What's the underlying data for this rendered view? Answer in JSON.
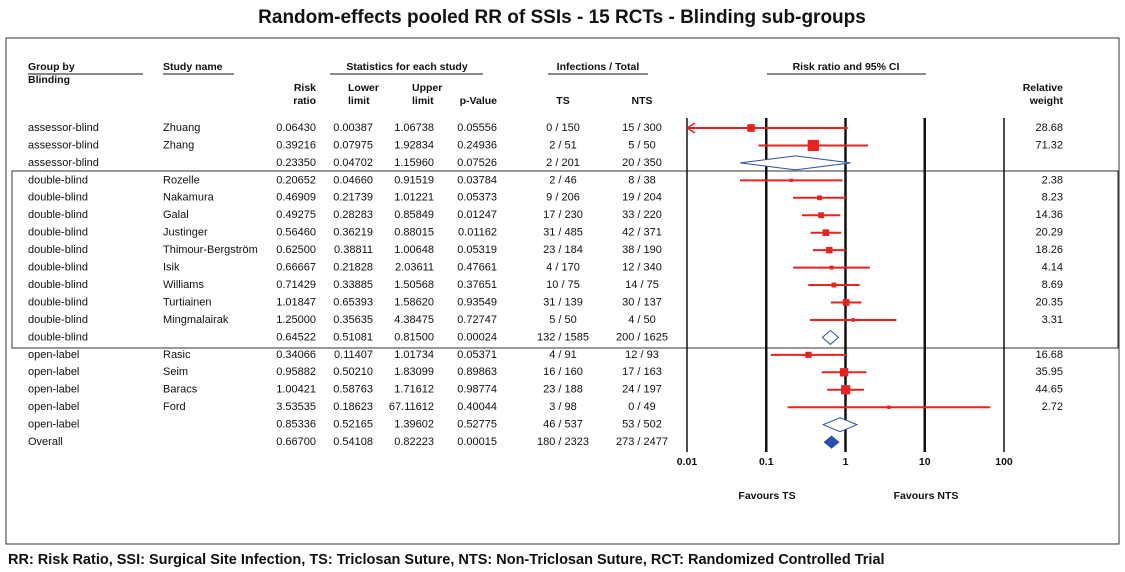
{
  "chart_data": {
    "type": "forest",
    "title": "Random-effects pooled RR of SSIs - 15 RCTs - Blinding sub-groups",
    "headers": {
      "group": [
        "Group by",
        "Blinding"
      ],
      "study": "Study name",
      "stats": "Statistics for each study",
      "infections": "Infections / Total",
      "plot": "Risk ratio and 95% CI",
      "rr": [
        "Risk",
        "ratio"
      ],
      "lower": [
        "Lower",
        "limit"
      ],
      "upper": [
        "Upper",
        "limit"
      ],
      "p": "p-Value",
      "ts": "TS",
      "nts": "NTS",
      "weight": [
        "Relative",
        "weight"
      ]
    },
    "rows": [
      {
        "group": "assessor-blind",
        "study": "Zhuang",
        "rr": "0.06430",
        "lower": "0.00387",
        "upper": "1.06738",
        "p": "0.05556",
        "ts": "0 / 150",
        "nts": "15 / 300",
        "weight": "28.68"
      },
      {
        "group": "assessor-blind",
        "study": "Zhang",
        "rr": "0.39216",
        "lower": "0.07975",
        "upper": "1.92834",
        "p": "0.24936",
        "ts": "2 / 51",
        "nts": "5 / 50",
        "weight": "71.32"
      },
      {
        "group": "assessor-blind",
        "rr": "0.23350",
        "lower": "0.04702",
        "upper": "1.15960",
        "p": "0.07526",
        "ts": "2 / 201",
        "nts": "20 / 350"
      },
      {
        "group": "double-blind",
        "study": "Rozelle",
        "rr": "0.20652",
        "lower": "0.04660",
        "upper": "0.91519",
        "p": "0.03784",
        "ts": "2 / 46",
        "nts": "8 / 38",
        "weight": "2.38"
      },
      {
        "group": "double-blind",
        "study": "Nakamura",
        "rr": "0.46909",
        "lower": "0.21739",
        "upper": "1.01221",
        "p": "0.05373",
        "ts": "9 / 206",
        "nts": "19 / 204",
        "weight": "8.23"
      },
      {
        "group": "double-blind",
        "study": "Galal",
        "rr": "0.49275",
        "lower": "0.28283",
        "upper": "0.85849",
        "p": "0.01247",
        "ts": "17 / 230",
        "nts": "33 / 220",
        "weight": "14.36"
      },
      {
        "group": "double-blind",
        "study": "Justinger",
        "rr": "0.56460",
        "lower": "0.36219",
        "upper": "0.88015",
        "p": "0.01162",
        "ts": "31 / 485",
        "nts": "42 / 371",
        "weight": "20.29"
      },
      {
        "group": "double-blind",
        "study": "Thimour-Bergström",
        "rr": "0.62500",
        "lower": "0.38811",
        "upper": "1.00648",
        "p": "0.05319",
        "ts": "23 / 184",
        "nts": "38 / 190",
        "weight": "18.26"
      },
      {
        "group": "double-blind",
        "study": "Isik",
        "rr": "0.66667",
        "lower": "0.21828",
        "upper": "2.03611",
        "p": "0.47661",
        "ts": "4 / 170",
        "nts": "12 / 340",
        "weight": "4.14"
      },
      {
        "group": "double-blind",
        "study": "Williams",
        "rr": "0.71429",
        "lower": "0.33885",
        "upper": "1.50568",
        "p": "0.37651",
        "ts": "10 / 75",
        "nts": "14 / 75",
        "weight": "8.69"
      },
      {
        "group": "double-blind",
        "study": "Turtiainen",
        "rr": "1.01847",
        "lower": "0.65393",
        "upper": "1.58620",
        "p": "0.93549",
        "ts": "31 / 139",
        "nts": "30 / 137",
        "weight": "20.35"
      },
      {
        "group": "double-blind",
        "study": "Mingmalairak",
        "rr": "1.25000",
        "lower": "0.35635",
        "upper": "4.38475",
        "p": "0.72747",
        "ts": "5 / 50",
        "nts": "4 / 50",
        "weight": "3.31"
      },
      {
        "group": "double-blind",
        "rr": "0.64522",
        "lower": "0.51081",
        "upper": "0.81500",
        "p": "0.00024",
        "ts": "132 / 1585",
        "nts": "200 / 1625"
      },
      {
        "group": "open-label",
        "study": "Rasic",
        "rr": "0.34066",
        "lower": "0.11407",
        "upper": "1.01734",
        "p": "0.05371",
        "ts": "4 / 91",
        "nts": "12 / 93",
        "weight": "16.68"
      },
      {
        "group": "open-label",
        "study": "Seim",
        "rr": "0.95882",
        "lower": "0.50210",
        "upper": "1.83099",
        "p": "0.89863",
        "ts": "16 / 160",
        "nts": "17 / 163",
        "weight": "35.95"
      },
      {
        "group": "open-label",
        "study": "Baracs",
        "rr": "1.00421",
        "lower": "0.58763",
        "upper": "1.71612",
        "p": "0.98774",
        "ts": "23 / 188",
        "nts": "24 / 197",
        "weight": "44.65"
      },
      {
        "group": "open-label",
        "study": "Ford",
        "rr": "3.53535",
        "lower": "0.18623",
        "upper": "67.11612",
        "p": "0.40044",
        "ts": "3 / 98",
        "nts": "0 / 49",
        "weight": "2.72"
      },
      {
        "group": "open-label",
        "rr": "0.85336",
        "lower": "0.52165",
        "upper": "1.39602",
        "p": "0.52775",
        "ts": "46 / 537",
        "nts": "53 / 502"
      },
      {
        "group": "Overall",
        "rr": "0.66700",
        "lower": "0.54108",
        "upper": "0.82223",
        "p": "0.00015",
        "ts": "180 / 2323",
        "nts": "273 / 2477",
        "overall": true
      }
    ],
    "xscale": "log",
    "xlim": [
      0.01,
      100
    ],
    "xticks": [
      0.01,
      0.1,
      1,
      10,
      100
    ],
    "color": "#e8231f",
    "summary_color": "#2b4fb0",
    "favours": [
      "Favours TS",
      "Favours NTS"
    ],
    "footnote": "RR: Risk Ratio, SSI: Surgical Site Infection, TS: Triclosan Suture, NTS: Non-Triclosan Suture, RCT: Randomized Controlled Trial"
  }
}
